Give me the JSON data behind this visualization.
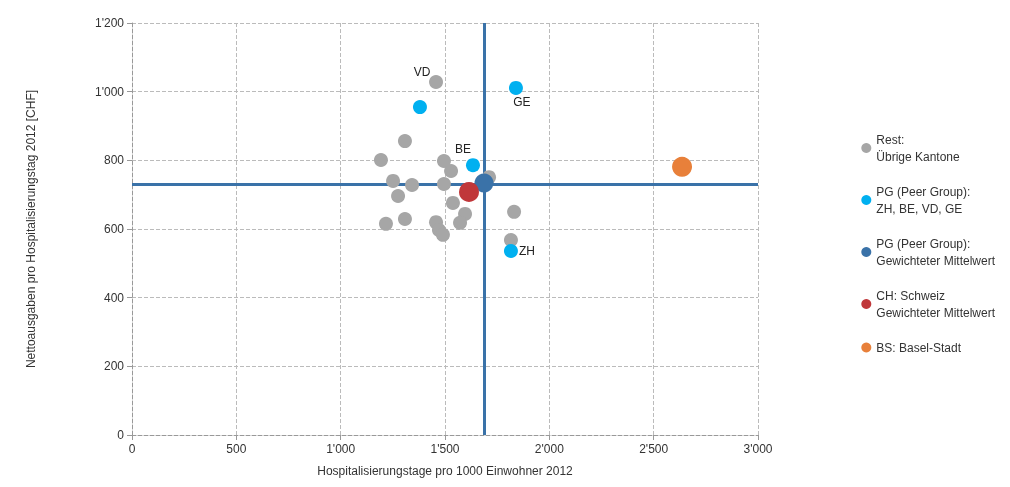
{
  "chart_data": {
    "type": "scatter",
    "xlabel": "Hospitalisierungstage pro 1000 Einwohner 2012",
    "ylabel": "Nettoausgaben pro Hospitalisierungstag 2012 [CHF]",
    "xlim": [
      0,
      3000
    ],
    "xticks": [
      0,
      500,
      {
        "value": 1000,
        "label": "1'000"
      },
      {
        "value": 1500,
        "label": "1'500"
      },
      {
        "value": 2000,
        "label": "2'000"
      },
      {
        "value": 2500,
        "label": "2'500"
      },
      {
        "value": 3000,
        "label": "3'000"
      }
    ],
    "ylim": [
      0,
      1200
    ],
    "yticks": [
      0,
      200,
      400,
      600,
      800,
      {
        "value": 1000,
        "label": "1'000"
      },
      {
        "value": 1200,
        "label": "1'200"
      }
    ],
    "grid": true,
    "legend": "right",
    "marker": "circle",
    "series": [
      {
        "name": "Rest:\nÜbrige Kantone",
        "color": "#a6a6a6",
        "x": [
          1457,
          1308,
          1193,
          1495,
          1529,
          1251,
          1342,
          1495,
          1711,
          1275,
          1538,
          1590,
          1596,
          1831,
          1308,
          1457,
          1572,
          1217,
          1471,
          1490,
          1816
        ],
        "values": [
          1028,
          856,
          801,
          798,
          769,
          740,
          728,
          731,
          751,
          696,
          676,
          null,
          644,
          650,
          629,
          620,
          618,
          615,
          597,
          583,
          568
        ]
      },
      {
        "name": "PG (Peer Group):\nZH, BE, VD, GE",
        "color": "#00b0f0",
        "x": [
          1380,
          1840,
          1634,
          1816
        ],
        "values": [
          955,
          1011,
          786,
          536
        ]
      },
      {
        "name": "PG (Peer Group):\nGewichteter Mittelwert",
        "color": "#3a72a8",
        "x": [
          1687
        ],
        "values": [
          734
        ]
      },
      {
        "name": "CH: Schweiz\nGewichteter Mittelwert",
        "color": "#c0373a",
        "x": [
          1615
        ],
        "values": [
          708
        ]
      },
      {
        "name": "BS: Basel-Stadt",
        "color": "#e8803a",
        "x": [
          2636
        ],
        "values": [
          781
        ]
      }
    ],
    "ref_lines": [
      {
        "axis": "x",
        "value": 1687,
        "label": null,
        "color": "#3a72a8"
      },
      {
        "axis": "y",
        "value": 730,
        "label": null,
        "color": "#3a72a8"
      }
    ],
    "annotations": [
      {
        "text": "VD",
        "x": 1457,
        "y": 1028
      },
      {
        "text": "GE",
        "x": 1840,
        "y": 1011
      },
      {
        "text": "BE",
        "x": 1634,
        "y": 786
      },
      {
        "text": "ZH",
        "x": 1816,
        "y": 536
      }
    ]
  }
}
